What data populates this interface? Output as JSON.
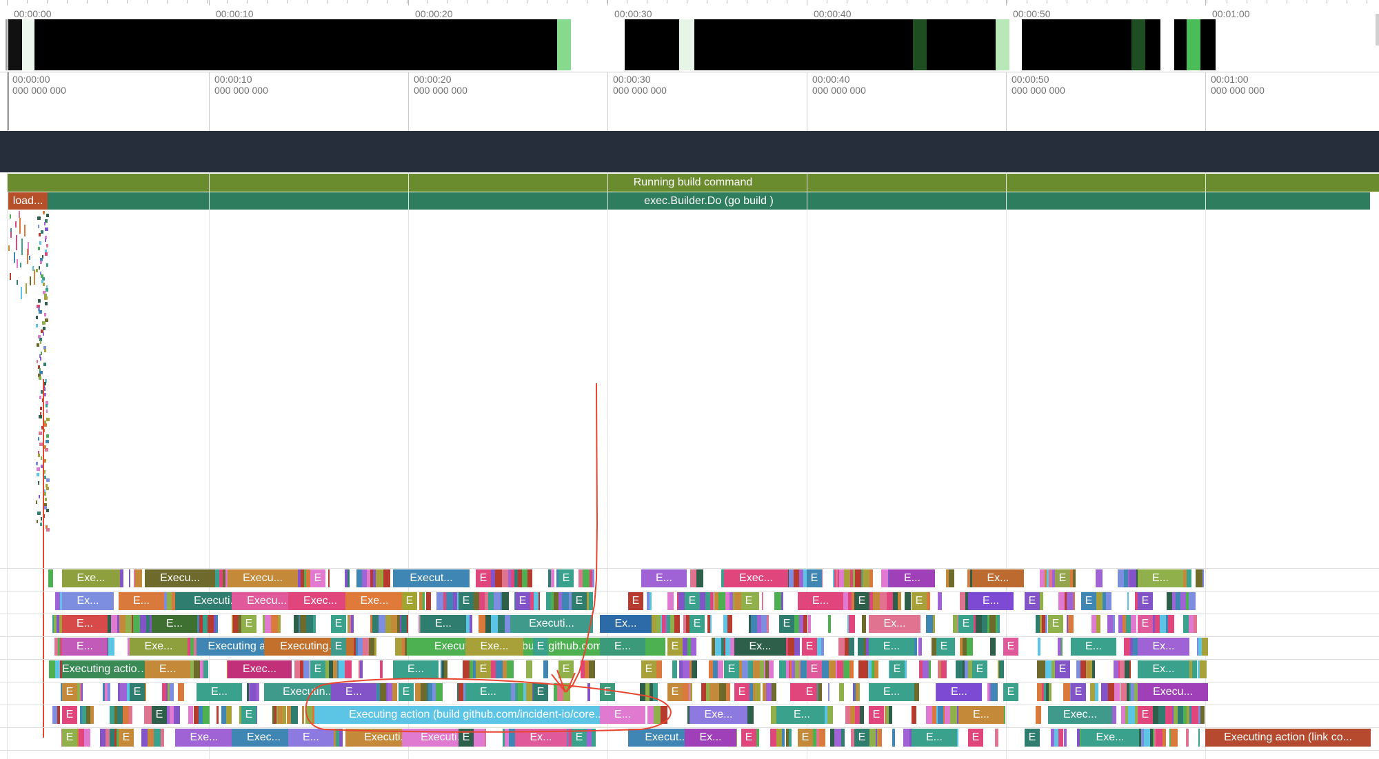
{
  "overview": {
    "time_labels": [
      "00:00:00",
      "00:00:10",
      "00:00:20",
      "00:00:30",
      "00:00:40",
      "00:00:50",
      "00:01:00"
    ]
  },
  "ruler": {
    "ticks": [
      {
        "time": "00:00:00",
        "ns": "000 000 000"
      },
      {
        "time": "00:00:10",
        "ns": "000 000 000"
      },
      {
        "time": "00:00:20",
        "ns": "000 000 000"
      },
      {
        "time": "00:00:30",
        "ns": "000 000 000"
      },
      {
        "time": "00:00:40",
        "ns": "000 000 000"
      },
      {
        "time": "00:00:50",
        "ns": "000 000 000"
      },
      {
        "time": "00:01:00",
        "ns": "000 000 000"
      }
    ]
  },
  "slices": {
    "running_build": "Running build command",
    "load": "load...",
    "builder_do": "exec.Builder.Do (go build )"
  },
  "lanes": [
    [
      {
        "text": "Exe...",
        "color": "#8e9f3d"
      },
      {
        "text": "Execu...",
        "color": "#6e6a2c"
      },
      {
        "text": "Execu...",
        "color": "#c48a3a"
      },
      {
        "text": "E",
        "color": "#e17ad0"
      },
      {
        "text": "Execut...",
        "color": "#3f86b5"
      },
      {
        "text": "E",
        "color": "#e0457b"
      },
      {
        "text": "E",
        "color": "#3aa18c"
      },
      {
        "text": "E...",
        "color": "#9f63d6"
      },
      {
        "text": "Exec...",
        "color": "#e0457b"
      },
      {
        "text": "E",
        "color": "#3f86b5"
      },
      {
        "text": "E...",
        "color": "#9f40b8"
      },
      {
        "text": "Ex...",
        "color": "#bd6a30"
      },
      {
        "text": "E",
        "color": "#94a54d"
      },
      {
        "text": "E...",
        "color": "#8fb04a"
      }
    ],
    [
      {
        "text": "Ex...",
        "color": "#7d8de0"
      },
      {
        "text": "E...",
        "color": "#d97a3c"
      },
      {
        "text": "Executi...",
        "color": "#2e7d6f"
      },
      {
        "text": "Execu...",
        "color": "#e05a9b"
      },
      {
        "text": "Exec...",
        "color": "#e0457b"
      },
      {
        "text": "Exe...",
        "color": "#e07a3a"
      },
      {
        "text": "E",
        "color": "#a1a52f"
      },
      {
        "text": "E",
        "color": "#2e7d6f"
      },
      {
        "text": "E",
        "color": "#8353c8"
      },
      {
        "text": "E",
        "color": "#2e7d6f"
      },
      {
        "text": "E",
        "color": "#b63b2e"
      },
      {
        "text": "E",
        "color": "#3aa18c"
      },
      {
        "text": "E",
        "color": "#8fb04a"
      },
      {
        "text": "E...",
        "color": "#e0457b"
      },
      {
        "text": "E",
        "color": "#2e5f4a"
      },
      {
        "text": "E",
        "color": "#a8a13a"
      },
      {
        "text": "E...",
        "color": "#7d4ad4"
      },
      {
        "text": "E",
        "color": "#8353c8"
      },
      {
        "text": "E",
        "color": "#3f86b5"
      },
      {
        "text": "E",
        "color": "#8353c8"
      }
    ],
    [
      {
        "text": "E...",
        "color": "#d64a4a"
      },
      {
        "text": "E...",
        "color": "#3d7031"
      },
      {
        "text": "E",
        "color": "#8fb04a"
      },
      {
        "text": "E",
        "color": "#3aa18c"
      },
      {
        "text": "E...",
        "color": "#2e7d6f"
      },
      {
        "text": "Executi...",
        "color": "#3f9a8c"
      },
      {
        "text": "Ex...",
        "color": "#2c6aa8"
      },
      {
        "text": "E",
        "color": "#3aa18c"
      },
      {
        "text": "E",
        "color": "#2e7d6f"
      },
      {
        "text": "Ex...",
        "color": "#e0738f"
      },
      {
        "text": "E",
        "color": "#3aa18c"
      },
      {
        "text": "E",
        "color": "#8fb04a"
      },
      {
        "text": "E",
        "color": "#e05a9b"
      }
    ],
    [
      {
        "text": "E...",
        "color": "#c15ab8"
      },
      {
        "text": "Exe...",
        "color": "#8e9f3d"
      },
      {
        "text": "Executing a...",
        "color": "#3f86b5"
      },
      {
        "text": "Executing...",
        "color": "#c2702c"
      },
      {
        "text": "E",
        "color": "#3f9a8c"
      },
      {
        "text": "Executing action (build github.com/yuin/...",
        "color": "#4db152"
      },
      {
        "text": "Exe...",
        "color": "#a8a13a"
      },
      {
        "text": "E",
        "color": "#3aa18c"
      },
      {
        "text": "E...",
        "color": "#3a9a7a"
      },
      {
        "text": "E",
        "color": "#a8a13a"
      },
      {
        "text": "Ex...",
        "color": "#2e5f4a"
      },
      {
        "text": "E",
        "color": "#e0457b"
      },
      {
        "text": "E...",
        "color": "#3aa18c"
      },
      {
        "text": "E",
        "color": "#3aa18c"
      },
      {
        "text": "E",
        "color": "#e05a9b"
      },
      {
        "text": "E...",
        "color": "#3aa18c"
      },
      {
        "text": "Ex...",
        "color": "#9f63d6"
      }
    ],
    [
      {
        "text": "Executing action...",
        "color": "#3a8a55"
      },
      {
        "text": "E...",
        "color": "#c48a3a"
      },
      {
        "text": "Exec...",
        "color": "#c2307a"
      },
      {
        "text": "E",
        "color": "#3aa18c"
      },
      {
        "text": "E...",
        "color": "#3aa18c"
      },
      {
        "text": "E",
        "color": "#a8a13a"
      },
      {
        "text": "E",
        "color": "#8fb04a"
      },
      {
        "text": "E",
        "color": "#a8a13a"
      },
      {
        "text": "E",
        "color": "#3aa18c"
      },
      {
        "text": "E",
        "color": "#e05a9b"
      },
      {
        "text": "E",
        "color": "#3aa18c"
      },
      {
        "text": "E",
        "color": "#3aa18c"
      },
      {
        "text": "E",
        "color": "#8353c8"
      },
      {
        "text": "Ex...",
        "color": "#3aa18c"
      }
    ],
    [
      {
        "text": "E",
        "color": "#c48a3a"
      },
      {
        "text": "E",
        "color": "#2e7d6f"
      },
      {
        "text": "E...",
        "color": "#3aa18c"
      },
      {
        "text": "Executin...",
        "color": "#3f9a8c"
      },
      {
        "text": "E...",
        "color": "#8353c8"
      },
      {
        "text": "E",
        "color": "#3aa18c"
      },
      {
        "text": "E...",
        "color": "#3aa18c"
      },
      {
        "text": "E",
        "color": "#2e7d6f"
      },
      {
        "text": "E",
        "color": "#3a9a7a"
      },
      {
        "text": "E",
        "color": "#c48a3a"
      },
      {
        "text": "E",
        "color": "#e0457b"
      },
      {
        "text": "E",
        "color": "#e0457b"
      },
      {
        "text": "E...",
        "color": "#3aa18c"
      },
      {
        "text": "E...",
        "color": "#7d4ad4"
      },
      {
        "text": "E",
        "color": "#3aa18c"
      },
      {
        "text": "E",
        "color": "#8353c8"
      },
      {
        "text": "Execu...",
        "color": "#9f40b8"
      }
    ],
    [
      {
        "text": "E",
        "color": "#e0457b"
      },
      {
        "text": "E",
        "color": "#2e5f4a"
      },
      {
        "text": "E",
        "color": "#3aa18c"
      },
      {
        "text": "E",
        "color": "#2c6aa8"
      },
      {
        "text": "Exec...",
        "color": "#3f9a8c"
      },
      {
        "text": "Executing action (build github.com/incident-io/core...",
        "color": "#5cc4e4"
      },
      {
        "text": "E...",
        "color": "#e07ad0"
      },
      {
        "text": "Exe...",
        "color": "#8d7ae0"
      },
      {
        "text": "E...",
        "color": "#3aa18c"
      },
      {
        "text": "E",
        "color": "#e0457b"
      },
      {
        "text": "E...",
        "color": "#c48a3a"
      },
      {
        "text": "Exec...",
        "color": "#3f9a8c"
      },
      {
        "text": "E",
        "color": "#e0457b"
      }
    ],
    [
      {
        "text": "E",
        "color": "#8fb04a"
      },
      {
        "text": "E",
        "color": "#c48a3a"
      },
      {
        "text": "Exe...",
        "color": "#9f63d6"
      },
      {
        "text": "Exec...",
        "color": "#3f86b5"
      },
      {
        "text": "E...",
        "color": "#8d7ae0"
      },
      {
        "text": "Executi...",
        "color": "#c48a3a"
      },
      {
        "text": "Executi...",
        "color": "#e07ad0"
      },
      {
        "text": "E",
        "color": "#2e5f4a"
      },
      {
        "text": "Ex...",
        "color": "#e05a9b"
      },
      {
        "text": "E",
        "color": "#3aa18c"
      },
      {
        "text": "Execut...",
        "color": "#3f86b5"
      },
      {
        "text": "Ex...",
        "color": "#9f40b8"
      },
      {
        "text": "E",
        "color": "#e0457b"
      },
      {
        "text": "E",
        "color": "#c48a3a"
      },
      {
        "text": "E",
        "color": "#2e7d6f"
      },
      {
        "text": "E...",
        "color": "#3aa18c"
      },
      {
        "text": "E",
        "color": "#e0457b"
      },
      {
        "text": "E",
        "color": "#2e7d6f"
      },
      {
        "text": "Exe...",
        "color": "#3aa18c"
      },
      {
        "text": "Executing action (link co...",
        "color": "#b54a2e"
      }
    ]
  ]
}
